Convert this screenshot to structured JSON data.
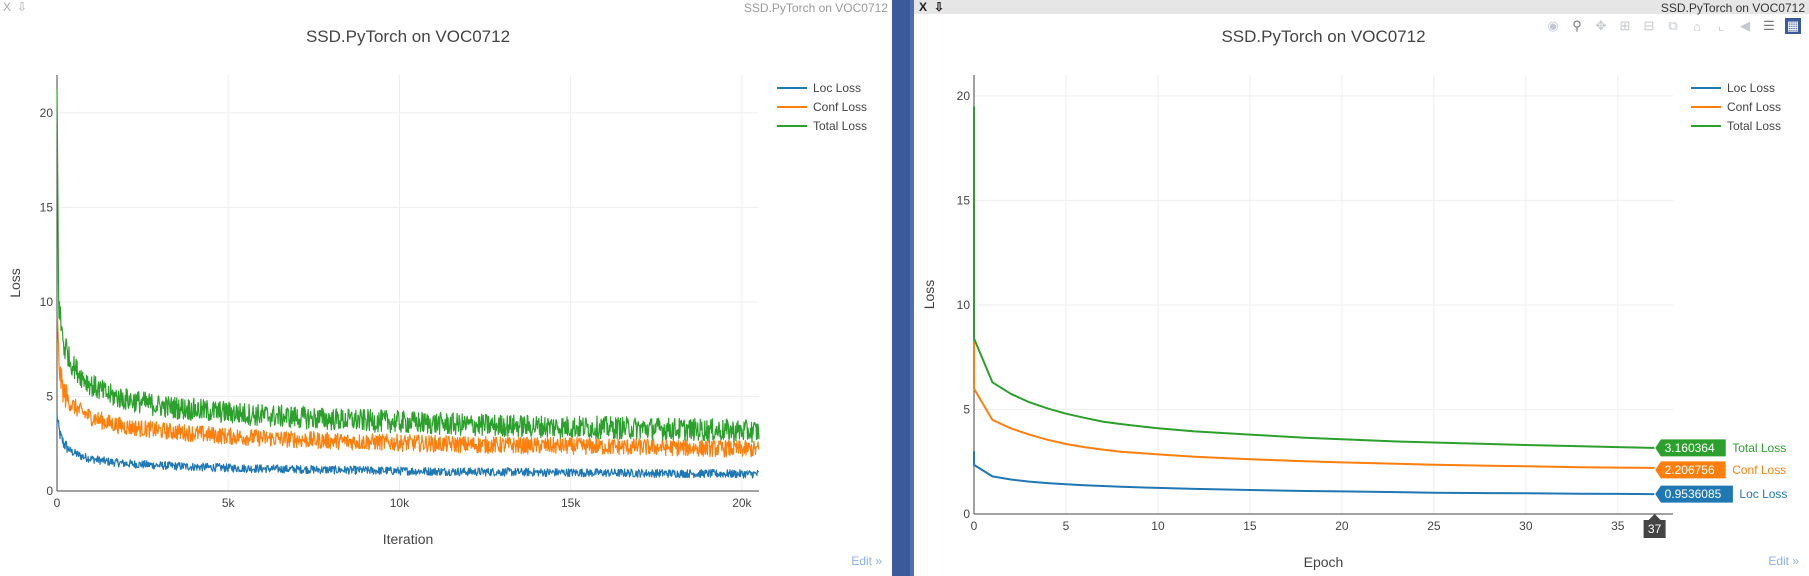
{
  "windows": [
    {
      "close_label": "X",
      "pin_label": "⇩",
      "caption": "SSD.PyTorch on VOC0712",
      "edit_label": "Edit »"
    },
    {
      "close_label": "X",
      "pin_label": "⇩",
      "caption": "SSD.PyTorch on VOC0712",
      "edit_label": "Edit »",
      "modebar_icons": [
        "camera-icon",
        "zoom-icon",
        "pan-icon",
        "zoom-in-icon",
        "zoom-out-icon",
        "autoscale-icon",
        "reset-axes-icon",
        "spike-lines-icon",
        "hover-closest-icon",
        "hover-compare-icon",
        "plotly-logo-icon"
      ]
    }
  ],
  "chart_data": [
    {
      "type": "line",
      "title": "SSD.PyTorch on VOC0712",
      "xlabel": "Iteration",
      "ylabel": "Loss",
      "xlim": [
        0,
        20500
      ],
      "ylim": [
        0,
        22
      ],
      "xticks": [
        0,
        5000,
        10000,
        15000,
        20000
      ],
      "xtick_labels": [
        "0",
        "5k",
        "10k",
        "15k",
        "20k"
      ],
      "yticks": [
        0,
        5,
        10,
        15,
        20
      ],
      "ytick_labels": [
        "0",
        "5",
        "10",
        "15",
        "20"
      ],
      "grid": true,
      "legend_position": "top-right",
      "noisy": true,
      "series": [
        {
          "name": "Loc Loss",
          "color": "#1f77b4",
          "x": [
            0,
            50,
            100,
            200,
            400,
            700,
            1000,
            1500,
            2000,
            3000,
            4000,
            5000,
            6000,
            8000,
            10000,
            12000,
            14000,
            16000,
            18000,
            20500
          ],
          "y": [
            4.0,
            3.3,
            2.9,
            2.5,
            2.1,
            1.85,
            1.7,
            1.55,
            1.45,
            1.35,
            1.28,
            1.22,
            1.18,
            1.12,
            1.06,
            1.02,
            0.99,
            0.96,
            0.93,
            0.9
          ],
          "noise": 0.22
        },
        {
          "name": "Conf Loss",
          "color": "#ff7f0e",
          "x": [
            0,
            50,
            100,
            200,
            400,
            700,
            1000,
            1500,
            2000,
            3000,
            4000,
            5000,
            6000,
            8000,
            10000,
            12000,
            14000,
            16000,
            18000,
            20500
          ],
          "y": [
            9.5,
            7.0,
            6.0,
            5.2,
            4.6,
            4.2,
            3.9,
            3.6,
            3.4,
            3.2,
            3.05,
            2.9,
            2.8,
            2.65,
            2.55,
            2.45,
            2.4,
            2.35,
            2.3,
            2.2
          ],
          "noise": 0.45
        },
        {
          "name": "Total Loss",
          "color": "#2ca02c",
          "x": [
            0,
            50,
            100,
            200,
            400,
            700,
            1000,
            1500,
            2000,
            3000,
            4000,
            5000,
            6000,
            8000,
            10000,
            12000,
            14000,
            16000,
            18000,
            20500
          ],
          "y": [
            21.0,
            10.0,
            9.0,
            7.8,
            6.8,
            6.1,
            5.6,
            5.1,
            4.85,
            4.5,
            4.3,
            4.15,
            4.0,
            3.8,
            3.65,
            3.5,
            3.42,
            3.35,
            3.28,
            3.15
          ],
          "noise": 0.6
        }
      ]
    },
    {
      "type": "line",
      "title": "SSD.PyTorch on VOC0712",
      "xlabel": "Epoch",
      "ylabel": "Loss",
      "xlim": [
        0,
        38
      ],
      "ylim": [
        0,
        21
      ],
      "xticks": [
        0,
        5,
        10,
        15,
        20,
        25,
        30,
        35
      ],
      "xtick_labels": [
        "0",
        "5",
        "10",
        "15",
        "20",
        "25",
        "30",
        "35"
      ],
      "yticks": [
        0,
        5,
        10,
        15,
        20
      ],
      "ytick_labels": [
        "0",
        "5",
        "10",
        "15",
        "20"
      ],
      "grid": true,
      "legend_position": "top-right",
      "noisy": false,
      "hover": {
        "x_label": "37",
        "x": 37
      },
      "series": [
        {
          "name": "Loc Loss",
          "color": "#1f77b4",
          "x": [
            0,
            0,
            1,
            2,
            3,
            4,
            5,
            6,
            7,
            8,
            10,
            12,
            15,
            18,
            20,
            23,
            25,
            28,
            30,
            33,
            35,
            37
          ],
          "y": [
            3.0,
            2.35,
            1.8,
            1.65,
            1.55,
            1.48,
            1.42,
            1.38,
            1.34,
            1.3,
            1.25,
            1.2,
            1.15,
            1.1,
            1.08,
            1.05,
            1.02,
            1.0,
            0.99,
            0.97,
            0.96,
            0.9536085
          ],
          "hover_value": "0.9536085"
        },
        {
          "name": "Conf Loss",
          "color": "#ff7f0e",
          "x": [
            0,
            0,
            1,
            2,
            3,
            4,
            5,
            6,
            7,
            8,
            10,
            12,
            15,
            18,
            20,
            23,
            25,
            28,
            30,
            33,
            35,
            37
          ],
          "y": [
            14.0,
            6.0,
            4.5,
            4.1,
            3.8,
            3.55,
            3.35,
            3.2,
            3.08,
            2.98,
            2.85,
            2.74,
            2.62,
            2.52,
            2.47,
            2.4,
            2.36,
            2.31,
            2.28,
            2.24,
            2.22,
            2.206756
          ],
          "hover_value": "2.206756"
        },
        {
          "name": "Total Loss",
          "color": "#2ca02c",
          "x": [
            0,
            0,
            1,
            2,
            3,
            4,
            5,
            6,
            7,
            8,
            10,
            12,
            15,
            18,
            20,
            23,
            25,
            28,
            30,
            33,
            35,
            37
          ],
          "y": [
            19.5,
            8.4,
            6.3,
            5.75,
            5.35,
            5.05,
            4.8,
            4.6,
            4.42,
            4.3,
            4.1,
            3.95,
            3.8,
            3.65,
            3.58,
            3.47,
            3.42,
            3.35,
            3.3,
            3.24,
            3.2,
            3.160364
          ],
          "hover_value": "3.160364"
        }
      ]
    }
  ]
}
